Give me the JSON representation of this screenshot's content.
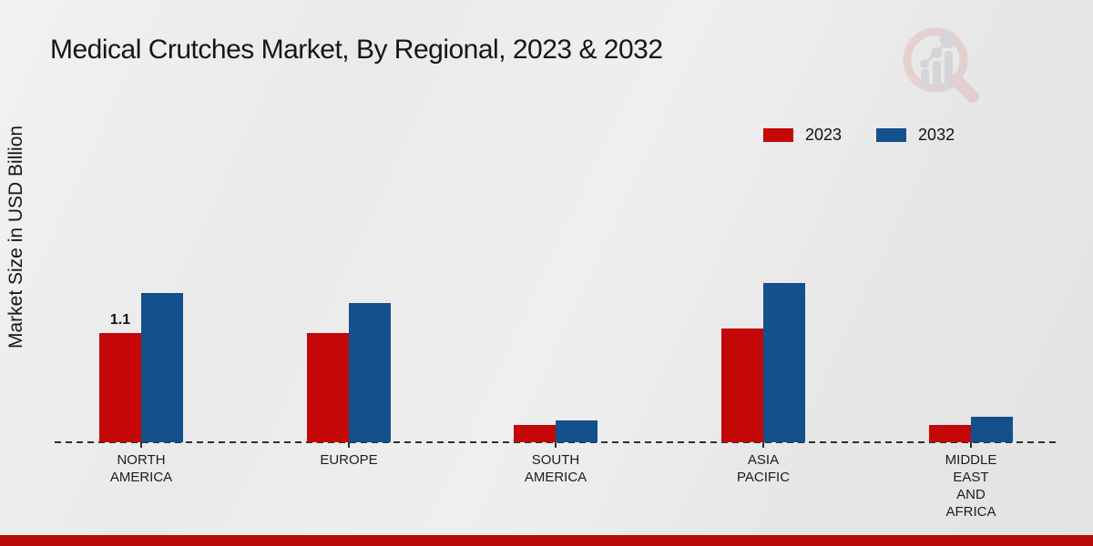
{
  "page": {
    "title": "Medical Crutches Market, By Regional, 2023 & 2032"
  },
  "y_axis": {
    "label": "Market Size in USD Billion"
  },
  "legend": {
    "items": [
      {
        "label": "2023",
        "color": "#c40808"
      },
      {
        "label": "2032",
        "color": "#14508c"
      }
    ]
  },
  "footer": {
    "accent_color": "#b90a0a"
  },
  "watermark": {
    "icon": "magnifier-bar-chart-logo",
    "circle_color": "#e3bdbd",
    "bars_color": "#c6c6cd"
  },
  "chart_data": {
    "type": "bar",
    "title": "Medical Crutches Market, By Regional, 2023 & 2032",
    "xlabel": "",
    "ylabel": "Market Size in USD Billion",
    "categories": [
      "NORTH AMERICA",
      "EUROPE",
      "SOUTH AMERICA",
      "ASIA PACIFIC",
      "MIDDLE EAST AND AFRICA"
    ],
    "category_label_lines": [
      [
        "NORTH",
        "AMERICA"
      ],
      [
        "EUROPE"
      ],
      [
        "SOUTH",
        "AMERICA"
      ],
      [
        "ASIA",
        "PACIFIC"
      ],
      [
        "MIDDLE",
        "EAST",
        "AND",
        "AFRICA"
      ]
    ],
    "series": [
      {
        "name": "2023",
        "color": "#c40808",
        "values": [
          1.1,
          1.1,
          0.17,
          1.15,
          0.17
        ],
        "point_labels": [
          "1.1",
          "",
          "",
          "",
          ""
        ]
      },
      {
        "name": "2032",
        "color": "#14508c",
        "values": [
          1.5,
          1.4,
          0.22,
          1.6,
          0.26
        ],
        "point_labels": [
          "",
          "",
          "",
          "",
          ""
        ]
      }
    ],
    "ylim": [
      0,
      1.8
    ],
    "grid": false,
    "legend_position": "upper right",
    "x_axis_style": "dashed baseline, no y-axis ticks"
  }
}
